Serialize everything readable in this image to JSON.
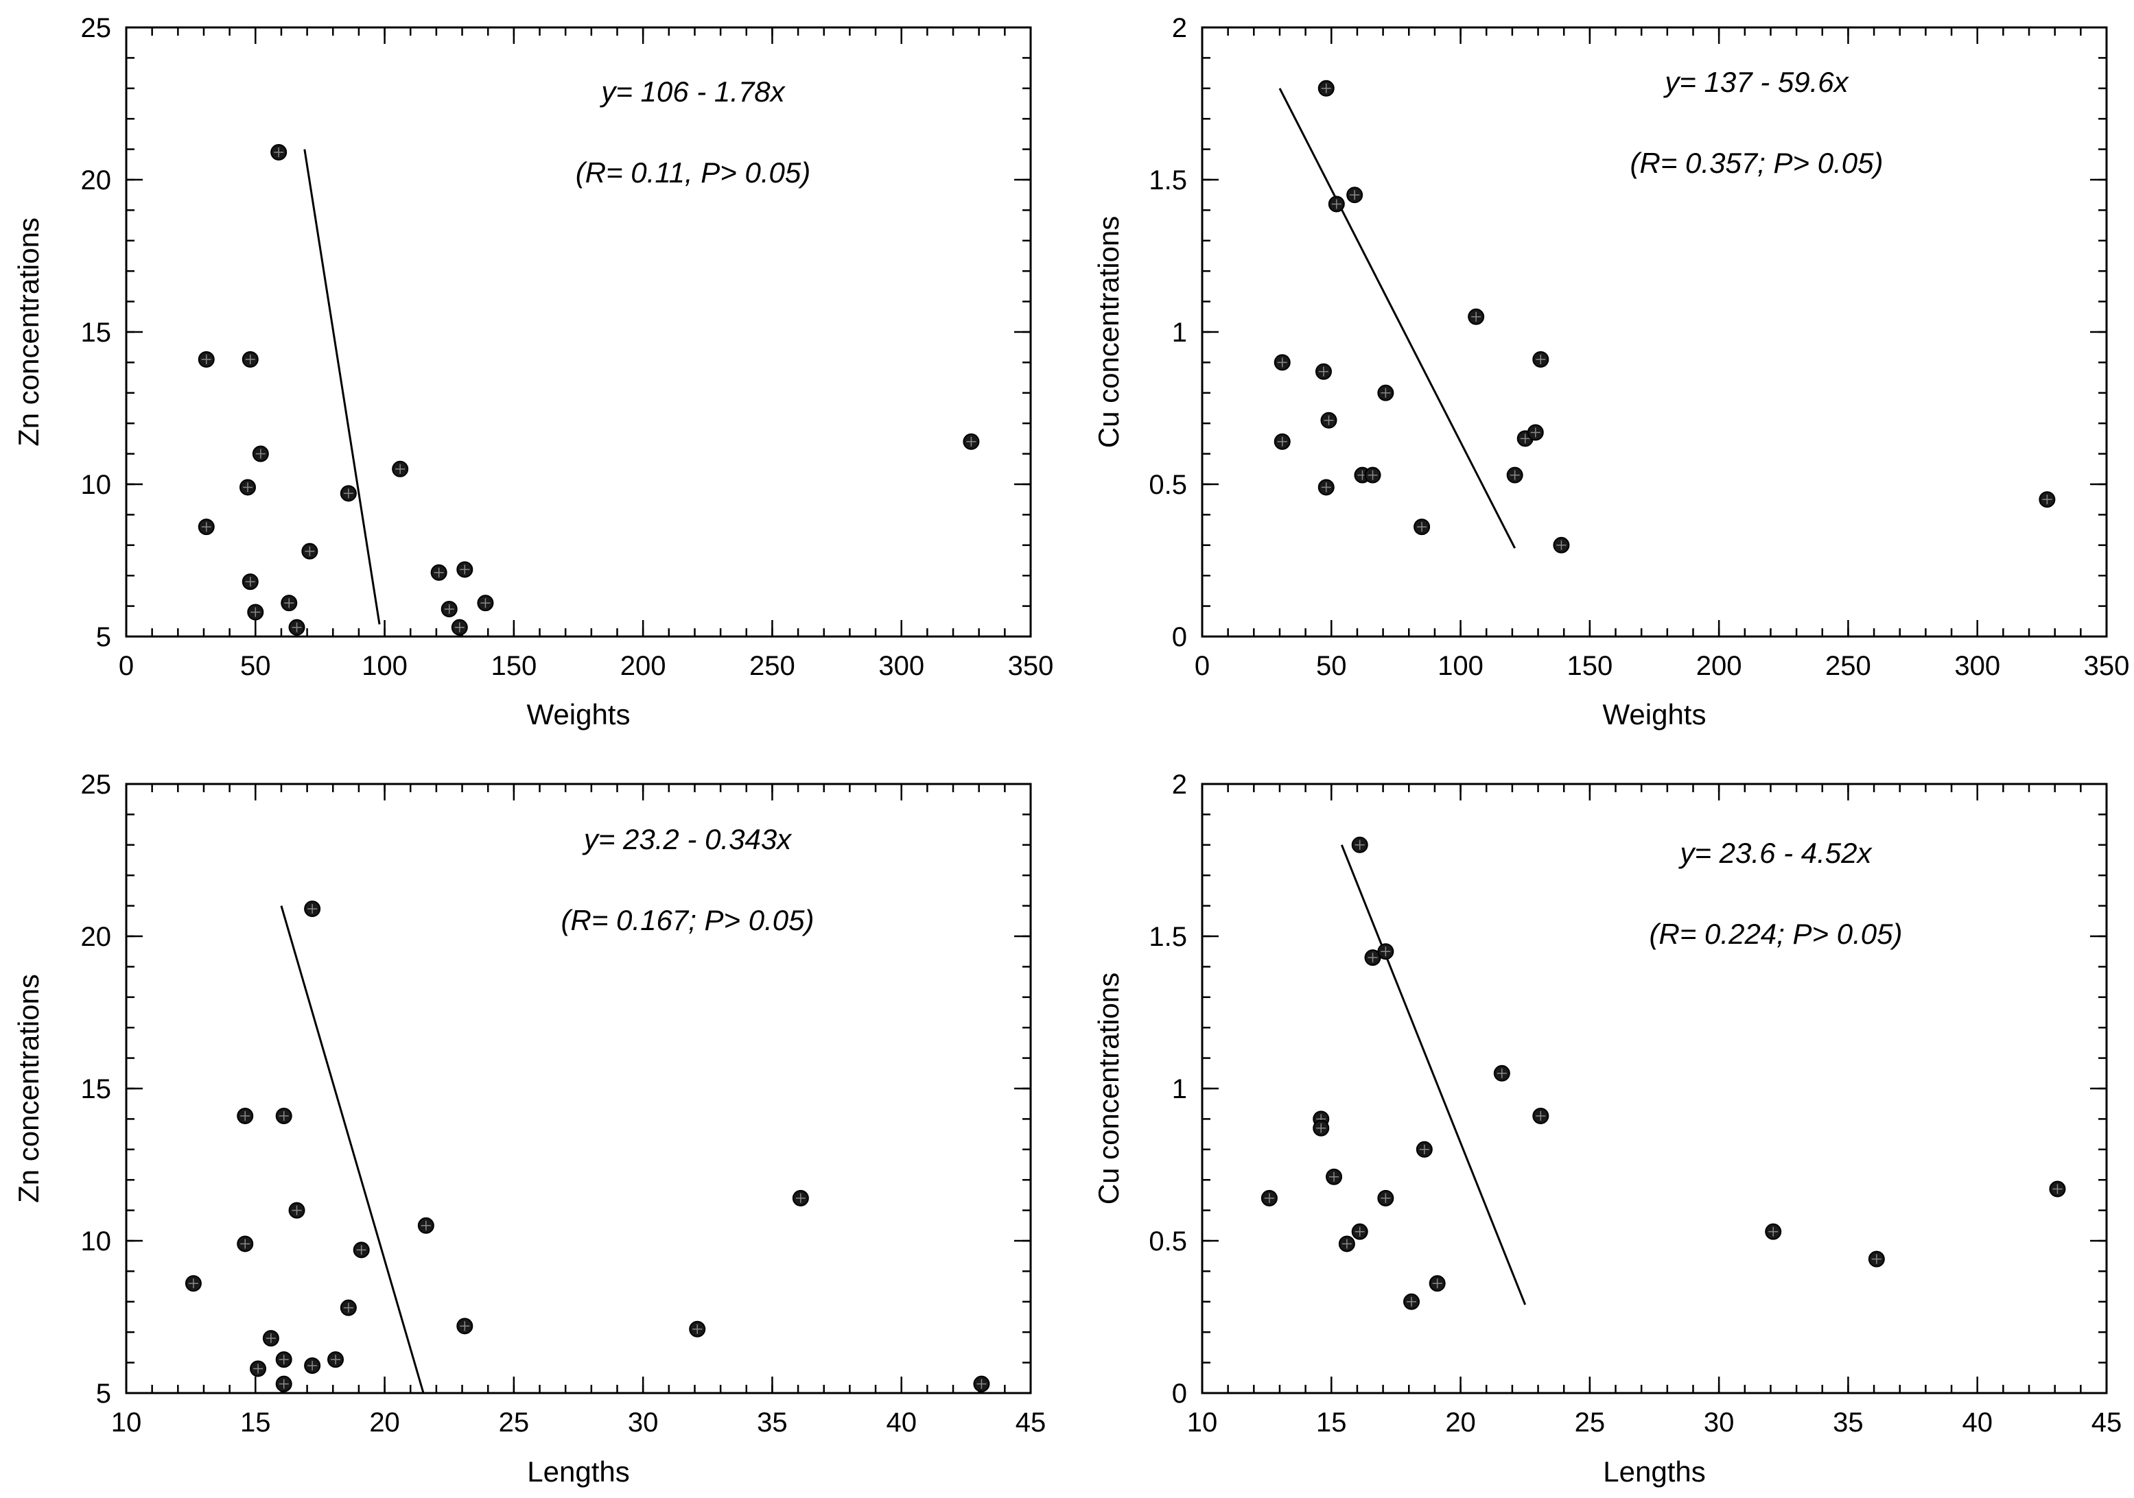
{
  "chart_data": [
    {
      "type": "scatter",
      "panel": "top-left",
      "title": "",
      "xlabel": "Weights",
      "ylabel": "Zn concentrations",
      "xlim": [
        0,
        350
      ],
      "ylim": [
        5,
        25
      ],
      "xticks": [
        0,
        50,
        100,
        150,
        200,
        250,
        300,
        350
      ],
      "yticks": [
        5,
        10,
        15,
        20,
        25
      ],
      "xtick_labels": [
        "0",
        "50",
        "100",
        "150",
        "200",
        "250",
        "300",
        "350"
      ],
      "ytick_labels": [
        "5",
        "10",
        "15",
        "20",
        "25"
      ],
      "x_minor_step": 10,
      "y_minor_step": 1,
      "x": [
        59,
        31,
        48,
        31,
        47,
        52,
        48,
        50,
        86,
        71,
        106,
        63,
        66,
        121,
        131,
        125,
        129,
        139,
        327
      ],
      "y": [
        20.9,
        14.1,
        14.1,
        8.6,
        9.9,
        11.0,
        6.8,
        5.8,
        9.7,
        7.8,
        10.5,
        6.1,
        5.3,
        7.1,
        7.2,
        5.9,
        5.3,
        6.1,
        11.4
      ],
      "regression_line": {
        "x": [
          69,
          98
        ],
        "y": [
          21.0,
          5.4
        ]
      },
      "annotations": [
        "y= 106 - 1.78x",
        "(R= 0.11,  P> 0.05)"
      ]
    },
    {
      "type": "scatter",
      "panel": "top-right",
      "title": "",
      "xlabel": "Weights",
      "ylabel": "Cu concentrations",
      "xlim": [
        0,
        350
      ],
      "ylim": [
        0,
        2
      ],
      "xticks": [
        0,
        50,
        100,
        150,
        200,
        250,
        300,
        350
      ],
      "yticks": [
        0,
        0.5,
        1,
        1.5,
        2
      ],
      "xtick_labels": [
        "0",
        "50",
        "100",
        "150",
        "200",
        "250",
        "300",
        "350"
      ],
      "ytick_labels": [
        "0",
        "0.5",
        "1",
        "1.5",
        "2"
      ],
      "x_minor_step": 10,
      "y_minor_step": 0.1,
      "x": [
        48,
        52,
        59,
        31,
        47,
        31,
        49,
        48,
        62,
        66,
        71,
        85,
        106,
        121,
        125,
        129,
        131,
        139,
        327
      ],
      "y": [
        1.8,
        1.42,
        1.45,
        0.9,
        0.87,
        0.64,
        0.71,
        0.49,
        0.53,
        0.53,
        0.8,
        0.36,
        1.05,
        0.53,
        0.65,
        0.67,
        0.91,
        0.3,
        0.45
      ],
      "regression_line": {
        "x": [
          30,
          121
        ],
        "y": [
          1.8,
          0.29
        ]
      },
      "annotations": [
        "y= 137 - 59.6x",
        "(R= 0.357;  P> 0.05)"
      ]
    },
    {
      "type": "scatter",
      "panel": "bottom-left",
      "title": "",
      "xlabel": "Lengths",
      "ylabel": "Zn concentrations",
      "xlim": [
        10,
        45
      ],
      "ylim": [
        5,
        25
      ],
      "xticks": [
        10,
        15,
        20,
        25,
        30,
        35,
        40,
        45
      ],
      "yticks": [
        5,
        10,
        15,
        20,
        25
      ],
      "xtick_labels": [
        "10",
        "15",
        "20",
        "25",
        "30",
        "35",
        "40",
        "45"
      ],
      "ytick_labels": [
        "5",
        "10",
        "15",
        "20",
        "25"
      ],
      "x_minor_step": 1,
      "y_minor_step": 1,
      "x": [
        17.2,
        14.6,
        16.1,
        12.6,
        14.6,
        16.6,
        15.6,
        16.1,
        15.1,
        17.2,
        18.1,
        16.1,
        18.6,
        19.1,
        21.6,
        23.1,
        32.1,
        36.1,
        43.1
      ],
      "y": [
        20.9,
        14.1,
        14.1,
        8.6,
        9.9,
        11.0,
        6.8,
        6.1,
        5.8,
        5.9,
        6.1,
        5.3,
        7.8,
        9.7,
        10.5,
        7.2,
        7.1,
        11.4,
        5.3
      ],
      "regression_line": {
        "x": [
          16.0,
          21.5
        ],
        "y": [
          21.0,
          5.0
        ]
      },
      "annotations": [
        "y= 23.2 - 0.343x",
        "(R= 0.167;  P> 0.05)"
      ]
    },
    {
      "type": "scatter",
      "panel": "bottom-right",
      "title": "",
      "xlabel": "Lengths",
      "ylabel": "Cu concentrations",
      "xlim": [
        10,
        45
      ],
      "ylim": [
        0,
        2
      ],
      "xticks": [
        10,
        15,
        20,
        25,
        30,
        35,
        40,
        45
      ],
      "yticks": [
        0,
        0.5,
        1,
        1.5,
        2
      ],
      "xtick_labels": [
        "10",
        "15",
        "20",
        "25",
        "30",
        "35",
        "40",
        "45"
      ],
      "ytick_labels": [
        "0",
        "0.5",
        "1",
        "1.5",
        "2"
      ],
      "x_minor_step": 1,
      "y_minor_step": 0.1,
      "x": [
        16.1,
        16.6,
        17.1,
        14.6,
        14.6,
        12.6,
        15.1,
        17.1,
        15.6,
        16.1,
        18.6,
        18.1,
        19.1,
        21.6,
        23.1,
        32.1,
        36.1,
        43.1
      ],
      "y": [
        1.8,
        1.43,
        1.45,
        0.9,
        0.87,
        0.64,
        0.71,
        0.64,
        0.49,
        0.53,
        0.8,
        0.3,
        0.36,
        1.05,
        0.91,
        0.53,
        0.44,
        0.67
      ],
      "regression_line": {
        "x": [
          15.4,
          22.5
        ],
        "y": [
          1.8,
          0.29
        ]
      },
      "annotations": [
        "y= 23.6 - 4.52x",
        "(R= 0.224;  P> 0.05)"
      ]
    }
  ]
}
